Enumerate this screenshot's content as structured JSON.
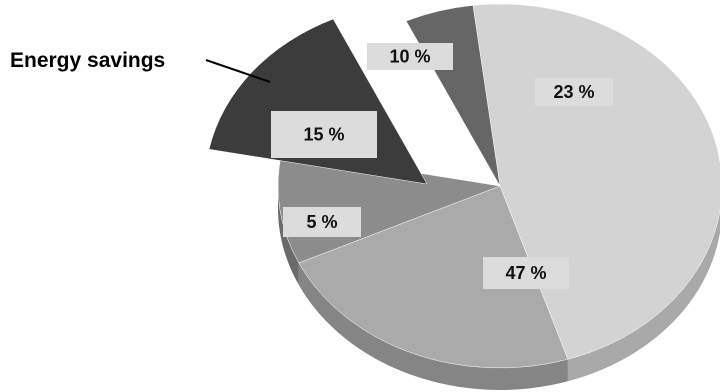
{
  "chart_data": {
    "type": "pie",
    "style": "3d-exploded",
    "slices": [
      {
        "label": "47 %",
        "value": 47,
        "color": "#d3d3d3",
        "side_color": "#a9a9a9"
      },
      {
        "label": "23 %",
        "value": 23,
        "color": "#aaaaaa",
        "side_color": "#858585"
      },
      {
        "label": "10 %",
        "value": 10,
        "color": "#8c8c8c",
        "side_color": "#6b6b6b"
      },
      {
        "label": "15 %",
        "value": 15,
        "color": "#3c3c3c",
        "side_color": "#1c1c1c",
        "exploded": true,
        "callout": "Energy savings"
      },
      {
        "label": "5 %",
        "value": 5,
        "color": "#666666",
        "side_color": "#4a4a4a"
      }
    ],
    "label_box_color": "#dcdcdc",
    "legend": "none",
    "grid": false
  }
}
